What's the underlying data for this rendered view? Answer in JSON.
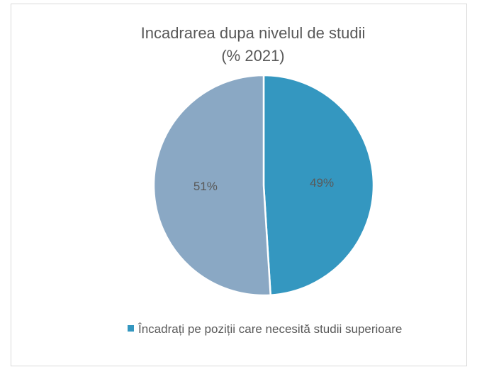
{
  "chart_data": {
    "type": "pie",
    "title": "Incadrarea dupa nivelul de studii",
    "subtitle": "(% 2021)",
    "categories": [
      "Încadrați pe poziții care necesită studii superioare",
      null
    ],
    "values": [
      49,
      51
    ],
    "value_labels": [
      "49%",
      "51%"
    ],
    "colors": [
      "#3497c0",
      "#8aa8c4"
    ],
    "legend": "bottom"
  }
}
